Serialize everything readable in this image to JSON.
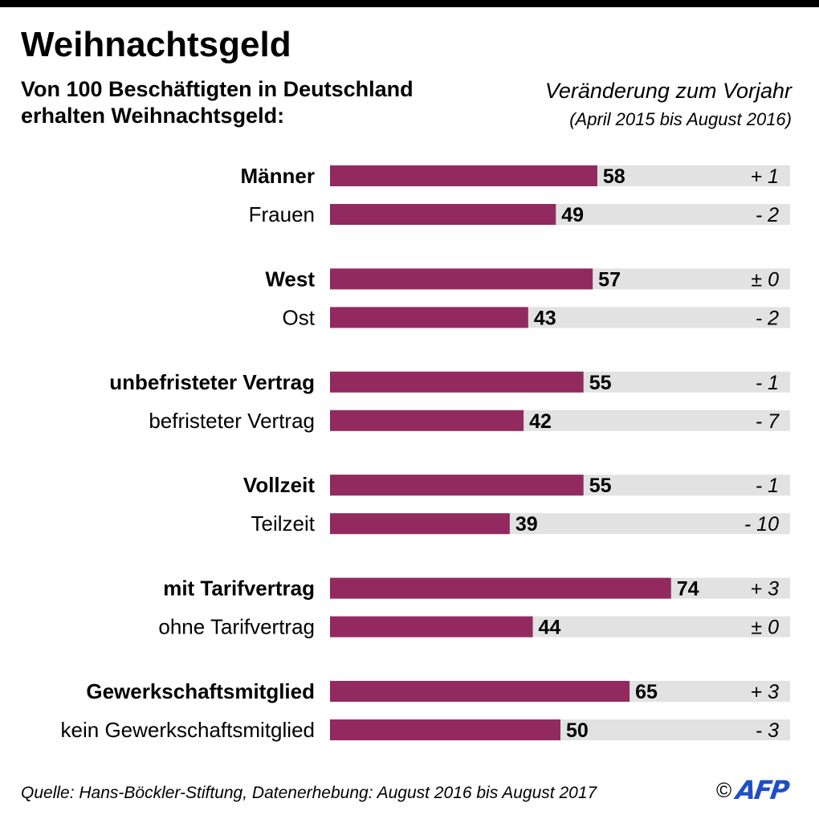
{
  "header": {
    "title": "Weihnachtsgeld",
    "subtitle_line1": "Von 100 Beschäftigten in Deutschland",
    "subtitle_line2": "erhalten Weihnachtsgeld:",
    "change_title": "Veränderung zum Vorjahr",
    "change_period": "(April 2015 bis August 2016)"
  },
  "footer": {
    "source": "Quelle: Hans-Böckler-Stiftung, Datenerhebung: August 2016 bis August 2017",
    "copyright": "©",
    "logo_text": "AFP"
  },
  "colors": {
    "bar": "#922a5f",
    "track": "#e2e2e2",
    "text": "#000000",
    "logo": "#1e4fc4"
  },
  "chart_data": {
    "type": "bar",
    "orientation": "horizontal",
    "title": "Weihnachtsgeld",
    "xlim": [
      0,
      100
    ],
    "grid": false,
    "categories": [
      "Männer",
      "Frauen",
      "West",
      "Ost",
      "unbefristeter Vertrag",
      "befristeter Vertrag",
      "Vollzeit",
      "Teilzeit",
      "mit Tarifvertrag",
      "ohne Tarifvertrag",
      "Gewerkschaftsmitglied",
      "kein Gewerkschaftsmitglied"
    ],
    "values": [
      58,
      49,
      57,
      43,
      55,
      42,
      55,
      39,
      74,
      44,
      65,
      50
    ],
    "changes": [
      "+ 1",
      "- 2",
      "± 0",
      "- 2",
      "- 1",
      "- 7",
      "- 1",
      "- 10",
      "+ 3",
      "± 0",
      "+ 3",
      "- 3"
    ],
    "emphasized": [
      true,
      false,
      true,
      false,
      true,
      false,
      true,
      false,
      true,
      false,
      true,
      false
    ]
  }
}
